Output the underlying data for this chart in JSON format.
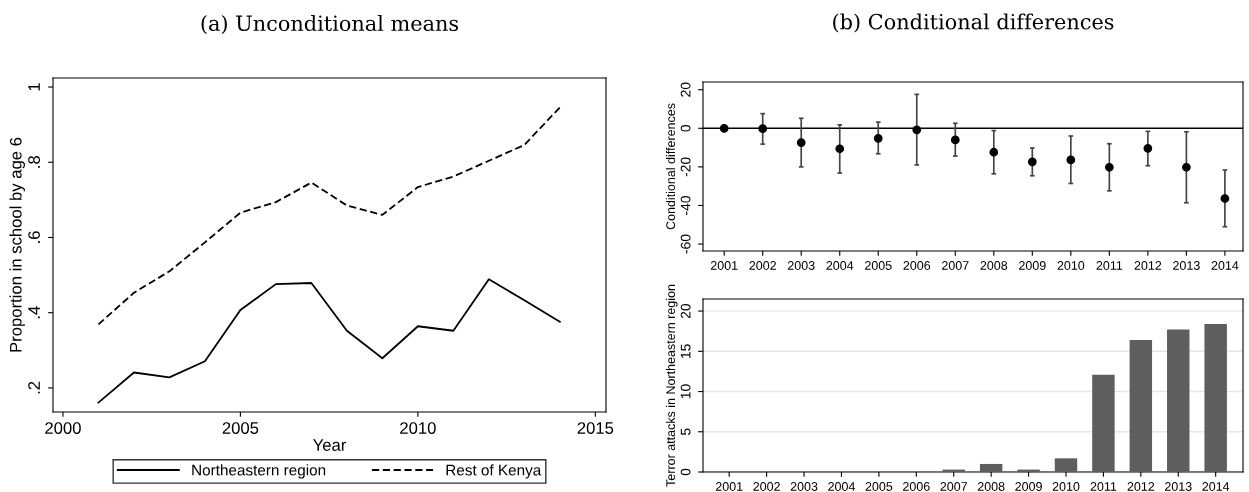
{
  "chart_data": [
    {
      "type": "line",
      "title": "(a) Unconditional means",
      "xlabel": "Year",
      "ylabel": "Proportion in school by age 6",
      "x": [
        2001,
        2002,
        2003,
        2004,
        2005,
        2006,
        2007,
        2008,
        2009,
        2010,
        2011,
        2012,
        2013,
        2014
      ],
      "series": [
        {
          "name": "Northeastern region",
          "color": "#000000",
          "line_style": "solid",
          "values": [
            0.161,
            0.241,
            0.228,
            0.271,
            0.407,
            0.476,
            0.479,
            0.352,
            0.279,
            0.364,
            0.352,
            0.489,
            0.433,
            0.376
          ]
        },
        {
          "name": "Rest of Kenya",
          "color": "#000000",
          "line_style": "dashed",
          "values": [
            0.369,
            0.453,
            0.51,
            0.587,
            0.666,
            0.694,
            0.746,
            0.685,
            0.66,
            0.734,
            0.762,
            0.804,
            0.846,
            0.946
          ]
        }
      ],
      "xlim": [
        1999.72,
        2015.3
      ],
      "xticks": [
        2000,
        2005,
        2010,
        2015
      ],
      "ylim": [
        0.136,
        1.024
      ],
      "yticks": [
        {
          "value": 0.2,
          "label": ".2"
        },
        {
          "value": 0.4,
          "label": ".4"
        },
        {
          "value": 0.6,
          "label": ".6"
        },
        {
          "value": 0.8,
          "label": ".8"
        },
        1
      ],
      "grid": false,
      "legend": "bottom"
    },
    {
      "type": "scatter",
      "title": "(b) Conditional differences",
      "ylabel": "Conditional differences",
      "categories": [
        "2001",
        "2002",
        "2003",
        "2004",
        "2005",
        "2006",
        "2007",
        "2008",
        "2009",
        "2010",
        "2011",
        "2012",
        "2013",
        "2014"
      ],
      "values": [
        0,
        -0.2,
        -7.4,
        -10.6,
        -5.2,
        -0.8,
        -6,
        -12.4,
        -17.4,
        -16.4,
        -20.2,
        -10.4,
        -20.2,
        -36.4
      ],
      "errors": [
        null,
        [
          -8.2,
          7.6
        ],
        [
          -20,
          5.2
        ],
        [
          -23.2,
          1.8
        ],
        [
          -13.2,
          3.2
        ],
        [
          -19,
          17.6
        ],
        [
          -14.4,
          2.6
        ],
        [
          -23.6,
          -1.2
        ],
        [
          -24.6,
          -10.2
        ],
        [
          -28.6,
          -4
        ],
        [
          -32.4,
          -8
        ],
        [
          -19.4,
          -1.6
        ],
        [
          -38.6,
          -1.8
        ],
        [
          -51,
          -21.6
        ]
      ],
      "color": "#000000",
      "marker": "circle",
      "ylim": [
        -63.6,
        24
      ],
      "yticks": [
        -60,
        -40,
        -20,
        0,
        20
      ],
      "ref_lines": [
        {
          "axis": "y",
          "value": 0,
          "color": "#000000",
          "line_style": "solid"
        }
      ],
      "grid": false
    },
    {
      "type": "bar",
      "ylabel": "Terror attacks in Northeastern region",
      "categories": [
        "2001",
        "2002",
        "2003",
        "2004",
        "2005",
        "2006",
        "2007",
        "2008",
        "2009",
        "2010",
        "2011",
        "2012",
        "2013",
        "2014"
      ],
      "values": [
        0,
        0,
        0,
        0,
        0,
        0,
        0.3,
        1.0,
        0.3,
        1.7,
        12.1,
        16.4,
        17.7,
        18.4
      ],
      "color": "#5e5e5e",
      "ylim": [
        0,
        21.5
      ],
      "yticks": [
        0,
        5,
        10,
        15,
        20
      ],
      "grid": "y"
    }
  ]
}
